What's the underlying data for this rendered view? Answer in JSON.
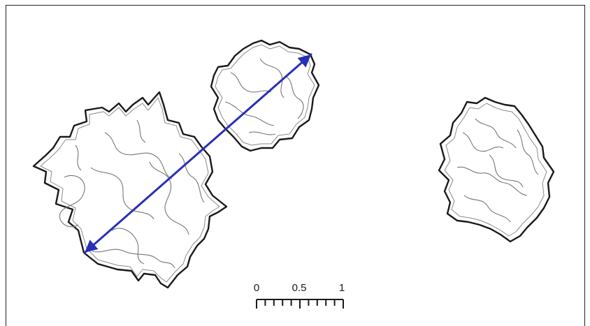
{
  "scale_bar": {
    "labels": [
      "0",
      "0.5",
      "1"
    ],
    "minor_divisions": 10
  },
  "colors": {
    "outline": "#1a1a1a",
    "inner_lines": "#6a6a6a",
    "measurement_arrow": "#2a2fb8",
    "background": "#ffffff"
  }
}
